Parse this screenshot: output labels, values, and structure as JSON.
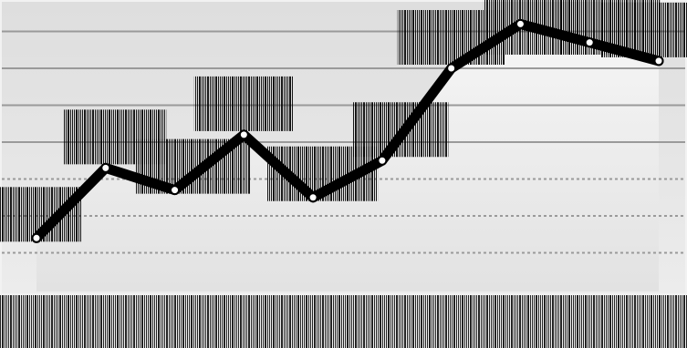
{
  "chart_data": {
    "type": "line",
    "x_tick_labels": [
      "",
      "",
      "",
      "",
      "",
      "",
      "",
      "",
      "",
      ""
    ],
    "series": [
      {
        "values": [
          1.4,
          3.3,
          2.7,
          4.2,
          2.5,
          3.5,
          6.0,
          7.2,
          6.7,
          6.2
        ]
      }
    ],
    "ylim": [
      0,
      8
    ],
    "grid": true,
    "gridlines_y": [
      1,
      2,
      3,
      4,
      5,
      6,
      7,
      8
    ],
    "colors": {
      "line": "#000000",
      "marker_fill": "#ffffff",
      "grid": "#9a9a9a",
      "background": "#e4e4e4"
    }
  }
}
